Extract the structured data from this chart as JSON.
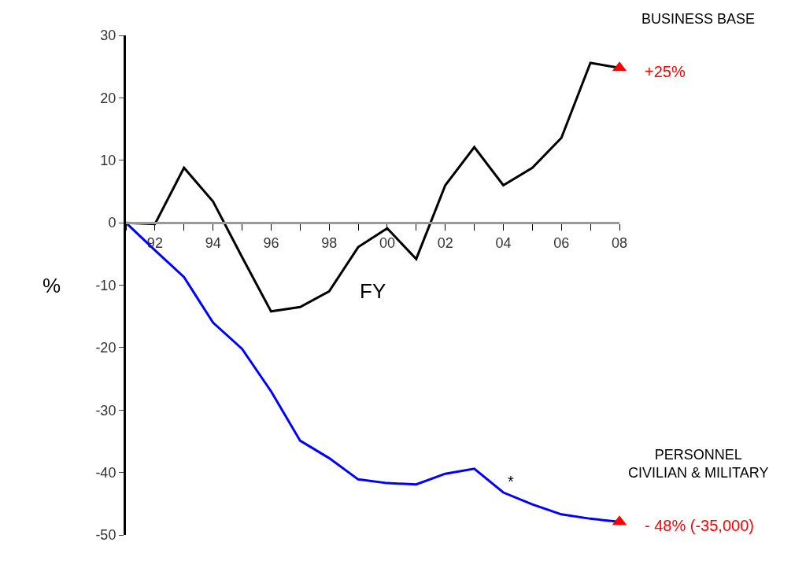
{
  "chart_data": {
    "type": "line",
    "categories": [
      null,
      "92",
      null,
      "94",
      null,
      "96",
      null,
      "98",
      null,
      "00",
      null,
      "02",
      null,
      "04",
      null,
      "06",
      null,
      "08"
    ],
    "series": [
      {
        "name": "BUSINESS BASE",
        "color": "#000000",
        "values": [
          0,
          -0.2,
          8.8,
          3.4,
          -5.5,
          -14.2,
          -13.5,
          -11,
          -3.9,
          -0.9,
          -5.8,
          6,
          12.1,
          6,
          8.8,
          13.6,
          25.6,
          24.8
        ]
      },
      {
        "name": "PERSONNEL\nCIVILIAN & MILITARY",
        "color": "#0000ff",
        "values": [
          0,
          -4.4,
          -8.7,
          -16,
          -20.2,
          -27,
          -34.9,
          -37.7,
          -41.1,
          -41.7,
          -41.9,
          -40.2,
          -39.4,
          -43.2,
          -45.1,
          -46.7,
          -47.4,
          -47.9
        ]
      }
    ],
    "xlabel": "FY",
    "ylabel": "%",
    "ylim": [
      -50,
      30
    ],
    "yticks": [
      -50,
      -40,
      -30,
      -20,
      -10,
      0,
      10,
      20,
      30
    ],
    "legend": false,
    "annotations": [
      {
        "text": "+25%",
        "x": "08",
        "y": 24.8
      },
      {
        "text": "- 48% (-35,000)",
        "x": "08",
        "y": -47.9
      },
      {
        "text": "*",
        "x": "04",
        "y": -43.2
      }
    ]
  }
}
